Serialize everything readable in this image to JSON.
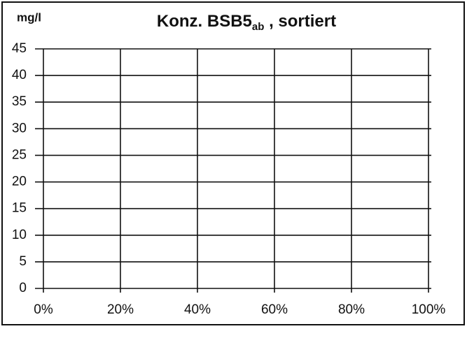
{
  "chart_data": {
    "type": "line",
    "title": [
      "Konz. BSB5",
      "ab",
      " , sortiert"
    ],
    "y_label": "mg/l",
    "series": [],
    "xlim": [
      0,
      100
    ],
    "xticks": [
      {
        "value": 0,
        "label": "0%"
      },
      {
        "value": 20,
        "label": "20%"
      },
      {
        "value": 40,
        "label": "40%"
      },
      {
        "value": 60,
        "label": "60%"
      },
      {
        "value": 80,
        "label": "80%"
      },
      {
        "value": 100,
        "label": "100%"
      }
    ],
    "ylim": [
      0,
      45
    ],
    "yticks": [
      0,
      5,
      10,
      15,
      20,
      25,
      30,
      35,
      40,
      45
    ],
    "grid": true
  }
}
